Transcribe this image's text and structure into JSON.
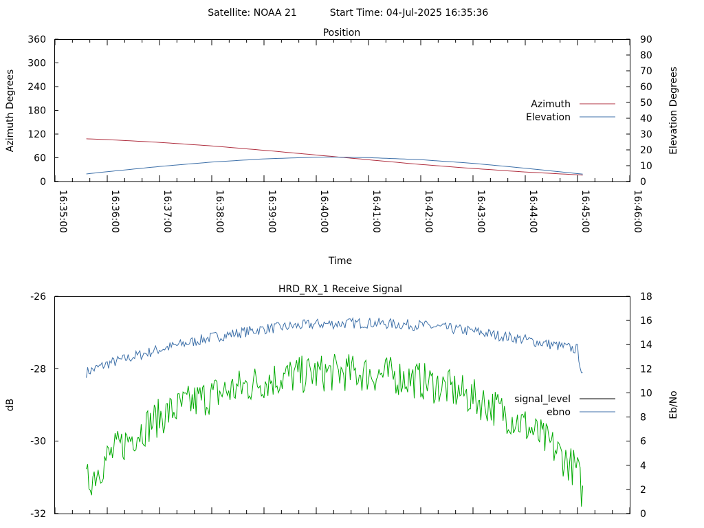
{
  "header": {
    "satellite": "Satellite: NOAA 21",
    "start_time": "Start Time: 04-Jul-2025 16:35:36"
  },
  "chart_data": [
    {
      "type": "line",
      "title": "Position",
      "xlabel": "Time",
      "ylabel_left": "Azimuth Degrees",
      "ylabel_right": "Elevation Degrees",
      "x_ticks": [
        "16:35:00",
        "16:36:00",
        "16:37:00",
        "16:38:00",
        "16:39:00",
        "16:40:00",
        "16:41:00",
        "16:42:00",
        "16:43:00",
        "16:44:00",
        "16:45:00",
        "16:46:00"
      ],
      "xlim": [
        "16:35:00",
        "16:46:00"
      ],
      "ylim_left": [
        0,
        360
      ],
      "ylim_right": [
        0,
        90
      ],
      "y_ticks_left": [
        0,
        60,
        120,
        180,
        240,
        300,
        360
      ],
      "y_ticks_right": [
        0,
        10,
        20,
        30,
        40,
        50,
        60,
        70,
        80,
        90
      ],
      "grid": false,
      "legend_position": "right",
      "series": [
        {
          "name": "Azimuth",
          "axis": "left",
          "color": "#b03040",
          "x": [
            "16:35:36",
            "16:36:00",
            "16:37:00",
            "16:38:00",
            "16:39:00",
            "16:40:00",
            "16:41:00",
            "16:42:00",
            "16:43:00",
            "16:44:00",
            "16:45:00",
            "16:45:06"
          ],
          "values": [
            108,
            106,
            99,
            90,
            79,
            67,
            55,
            43,
            33,
            24,
            17,
            16
          ]
        },
        {
          "name": "Elevation",
          "axis": "right",
          "color": "#3c6fa8",
          "x": [
            "16:35:36",
            "16:36:00",
            "16:37:00",
            "16:38:00",
            "16:39:00",
            "16:40:00",
            "16:40:15",
            "16:41:00",
            "16:42:00",
            "16:43:00",
            "16:44:00",
            "16:45:00",
            "16:45:06"
          ],
          "values": [
            4.8,
            6.2,
            9.5,
            12.3,
            14.3,
            15.4,
            15.5,
            15.1,
            13.8,
            11.5,
            8.4,
            5.0,
            4.7
          ]
        }
      ]
    },
    {
      "type": "line",
      "title": "HRD_RX_1 Receive Signal",
      "ylabel_left": "dB",
      "ylabel_right": "Eb/No",
      "ylim_left": [
        -32,
        -26
      ],
      "ylim_right": [
        0,
        18
      ],
      "y_ticks_left": [
        -32,
        -30,
        -28,
        -26
      ],
      "y_ticks_right": [
        0,
        2,
        4,
        6,
        8,
        10,
        12,
        14,
        16,
        18
      ],
      "xlim": [
        "16:35:00",
        "16:46:00"
      ],
      "grid": false,
      "legend_position": "right",
      "series": [
        {
          "name": "signal_level",
          "axis": "left",
          "color": "#000000",
          "x": [
            "16:35:36",
            "16:36:00",
            "16:37:00",
            "16:38:00",
            "16:39:00",
            "16:40:00",
            "16:41:00",
            "16:42:00",
            "16:43:00",
            "16:44:00",
            "16:45:00",
            "16:45:06"
          ],
          "values": [
            -28.1,
            -27.8,
            -27.4,
            -27.1,
            -26.9,
            -26.75,
            -26.8,
            -26.8,
            -27.0,
            -27.2,
            -27.4,
            -28.2
          ]
        },
        {
          "name": "ebno",
          "axis": "right",
          "color": "#3c6fa8",
          "x": [
            "16:35:36",
            "16:36:00",
            "16:37:00",
            "16:38:00",
            "16:39:00",
            "16:40:00",
            "16:41:00",
            "16:42:00",
            "16:43:00",
            "16:44:00",
            "16:45:00",
            "16:45:06"
          ],
          "values": [
            11.7,
            12.4,
            13.6,
            14.6,
            15.3,
            15.7,
            15.8,
            15.6,
            15.1,
            14.4,
            13.6,
            11.3
          ]
        },
        {
          "name": "",
          "axis": "right",
          "color": "#00aa00",
          "x": [
            "16:35:36",
            "16:36:00",
            "16:36:30",
            "16:37:00",
            "16:37:30",
            "16:38:00",
            "16:38:30",
            "16:39:00",
            "16:39:30",
            "16:40:00",
            "16:40:30",
            "16:41:00",
            "16:41:30",
            "16:42:00",
            "16:42:30",
            "16:43:00",
            "16:43:30",
            "16:44:00",
            "16:44:30",
            "16:45:00",
            "16:45:06"
          ],
          "values": [
            2.5,
            4.6,
            6.5,
            8.0,
            9.0,
            9.8,
            10.4,
            11.0,
            11.4,
            11.6,
            11.7,
            11.6,
            11.4,
            11.0,
            10.4,
            9.6,
            8.6,
            7.3,
            5.6,
            3.5,
            1.5
          ]
        }
      ]
    }
  ]
}
